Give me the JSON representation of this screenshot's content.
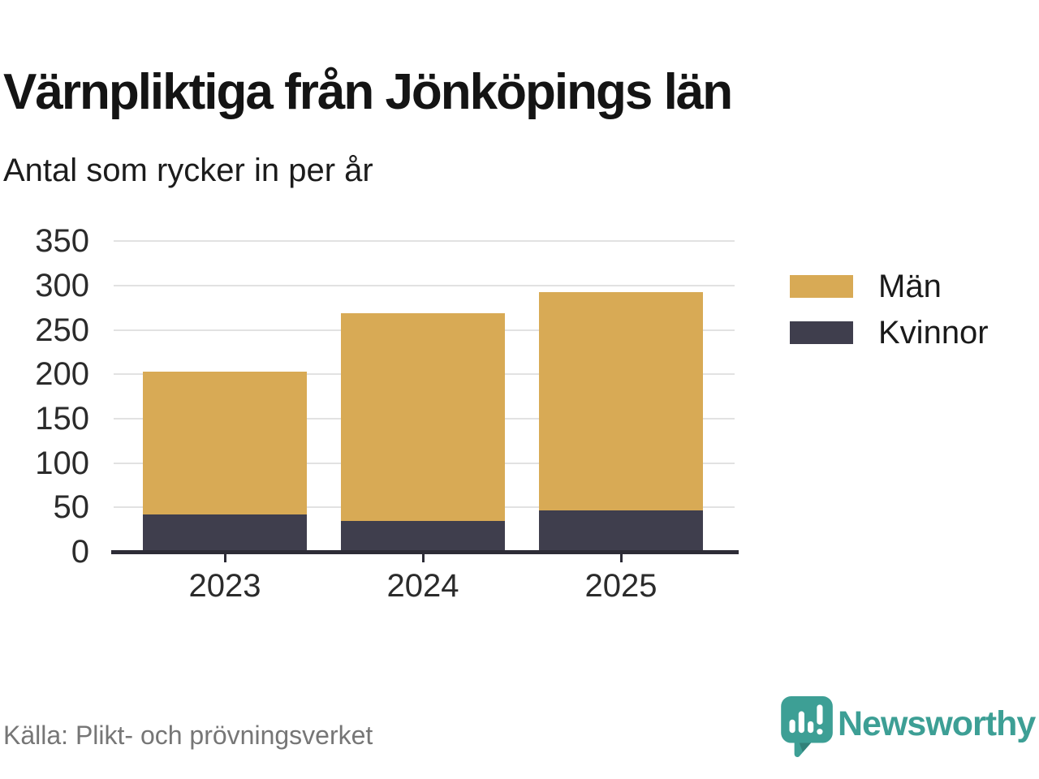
{
  "title": "Värnpliktiga från Jönköpings län",
  "subtitle": "Antal som rycker in per år",
  "source": "Källa: Plikt- och prövningsverket",
  "brand": {
    "name": "Newsworthy",
    "logo_icon": "speech-bubble-bar-chart-icon",
    "color": "#3d9f95"
  },
  "colors": {
    "men": "#d8aa55",
    "women": "#3f3e4d",
    "axis": "#2d2c36",
    "grid": "#e2e2e2",
    "title_text": "#141414",
    "tick_text": "#2b2b2b",
    "source_text": "#767676"
  },
  "chart_data": {
    "type": "bar",
    "stacked": true,
    "title": "Värnpliktiga från Jönköpings län",
    "subtitle": "Antal som rycker in per år",
    "categories": [
      "2023",
      "2024",
      "2025"
    ],
    "series": [
      {
        "name": "Män",
        "color_key": "men",
        "values": [
          161,
          234,
          246
        ]
      },
      {
        "name": "Kvinnor",
        "color_key": "women",
        "values": [
          40,
          33,
          45
        ]
      }
    ],
    "stack_bottom_to_top": [
      "Kvinnor",
      "Män"
    ],
    "totals": [
      201,
      267,
      291
    ],
    "yticks": [
      0,
      50,
      100,
      150,
      200,
      250,
      300,
      350
    ],
    "ylim": [
      0,
      350
    ],
    "xlabel": "",
    "ylabel": "",
    "grid": true,
    "legend_position": "right"
  }
}
